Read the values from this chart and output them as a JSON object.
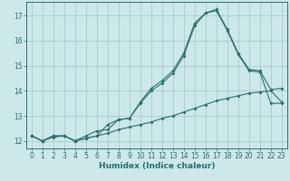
{
  "xlabel": "Humidex (Indice chaleur)",
  "bg_color": "#cce8e8",
  "grid_color": "#aacccc",
  "line_color": "#2a6e6e",
  "spine_color": "#2a6e6e",
  "xlim": [
    -0.5,
    23.5
  ],
  "ylim": [
    11.7,
    17.55
  ],
  "xticks": [
    0,
    1,
    2,
    3,
    4,
    5,
    6,
    7,
    8,
    9,
    10,
    11,
    12,
    13,
    14,
    15,
    16,
    17,
    18,
    19,
    20,
    21,
    22,
    23
  ],
  "yticks": [
    12,
    13,
    14,
    15,
    16,
    17
  ],
  "line1_x": [
    0,
    1,
    2,
    3,
    4,
    5,
    6,
    7,
    8,
    9,
    10,
    11,
    12,
    13,
    14,
    15,
    16,
    17,
    18,
    19,
    20,
    21,
    22,
    23
  ],
  "line1_y": [
    12.2,
    12.0,
    12.2,
    12.2,
    12.0,
    12.2,
    12.4,
    12.45,
    12.85,
    12.9,
    13.55,
    14.1,
    14.4,
    14.8,
    15.5,
    16.7,
    17.1,
    17.25,
    16.45,
    15.5,
    14.85,
    14.8,
    14.05,
    14.1
  ],
  "line2_x": [
    0,
    1,
    2,
    3,
    4,
    5,
    6,
    7,
    8,
    9,
    10,
    11,
    12,
    13,
    14,
    15,
    16,
    17,
    18,
    19,
    20,
    21,
    22,
    23
  ],
  "line2_y": [
    12.2,
    12.0,
    12.2,
    12.2,
    12.0,
    12.1,
    12.2,
    12.65,
    12.85,
    12.9,
    13.5,
    14.0,
    14.3,
    14.7,
    15.4,
    16.6,
    17.1,
    17.2,
    16.4,
    15.45,
    14.8,
    14.75,
    13.5,
    13.5
  ],
  "line3_x": [
    0,
    1,
    2,
    3,
    4,
    5,
    6,
    7,
    8,
    9,
    10,
    11,
    12,
    13,
    14,
    15,
    16,
    17,
    18,
    19,
    20,
    21,
    22,
    23
  ],
  "line3_y": [
    12.2,
    12.0,
    12.15,
    12.2,
    12.0,
    12.1,
    12.2,
    12.3,
    12.45,
    12.55,
    12.65,
    12.75,
    12.9,
    13.0,
    13.15,
    13.3,
    13.45,
    13.6,
    13.7,
    13.8,
    13.9,
    13.95,
    14.0,
    13.55
  ],
  "tick_fontsize": 5.5,
  "xlabel_fontsize": 6.5,
  "marker_size": 2.0,
  "linewidth": 0.8
}
